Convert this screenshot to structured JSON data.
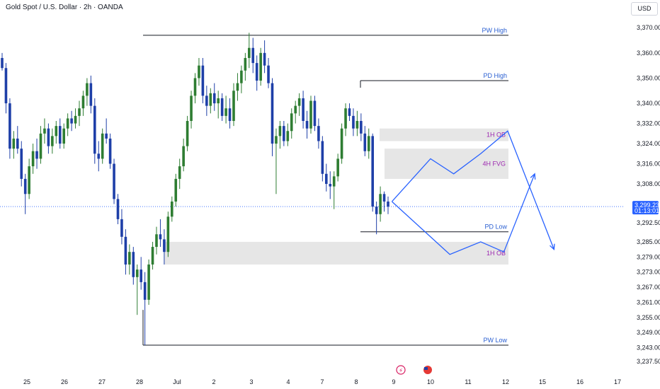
{
  "header": {
    "title": "Gold Spot / U.S. Dollar · 2h · OANDA",
    "currency": "USD"
  },
  "colors": {
    "up": "#2e7d32",
    "down": "#1e3fa8",
    "level_line": "#131722",
    "level_text": "#2a5fd1",
    "zone_text": "#9c27b0",
    "zone_fill": "#e6e6e6",
    "projection": "#2962ff",
    "price_tag": "#2962ff"
  },
  "chart_data": {
    "type": "candlestick",
    "title": "Gold Spot / U.S. Dollar · 2h · OANDA",
    "ylim": [
      3235,
      3374
    ],
    "y_ticks": [
      "3,370.000",
      "3,360.000",
      "3,350.000",
      "3,340.000",
      "3,332.000",
      "3,324.000",
      "3,316.000",
      "3,308.000",
      "3,292.500",
      "3,285.000",
      "3,279.000",
      "3,273.000",
      "3,267.000",
      "3,261.000",
      "3,255.000",
      "3,249.000",
      "3,243.000",
      "3,237.500"
    ],
    "x_ticks": [
      "25",
      "26",
      "27",
      "28",
      "Jul",
      "2",
      "3",
      "4",
      "7",
      "8",
      "9",
      "10",
      "11",
      "12",
      "15",
      "16",
      "17"
    ],
    "current_price": "3,299.235",
    "countdown": "01:13:01",
    "levels": [
      {
        "label": "PW High",
        "value": 3367
      },
      {
        "label": "PD High",
        "value": 3349
      },
      {
        "label": "PD Low",
        "value": 3289
      },
      {
        "label": "PW Low",
        "value": 3244
      }
    ],
    "zones": [
      {
        "label": "1H OB",
        "top": 3330,
        "bottom": 3325
      },
      {
        "label": "4H FVG",
        "top": 3322,
        "bottom": 3310
      },
      {
        "label": "1H OB",
        "top": 3285,
        "bottom": 3276
      }
    ],
    "candles": [
      {
        "o": 3358,
        "h": 3360,
        "l": 3353,
        "c": 3354
      },
      {
        "o": 3354,
        "h": 3356,
        "l": 3336,
        "c": 3340
      },
      {
        "o": 3340,
        "h": 3342,
        "l": 3318,
        "c": 3322
      },
      {
        "o": 3322,
        "h": 3329,
        "l": 3318,
        "c": 3326
      },
      {
        "o": 3326,
        "h": 3331,
        "l": 3320,
        "c": 3322
      },
      {
        "o": 3322,
        "h": 3325,
        "l": 3307,
        "c": 3310
      },
      {
        "o": 3310,
        "h": 3312,
        "l": 3296,
        "c": 3304
      },
      {
        "o": 3304,
        "h": 3318,
        "l": 3302,
        "c": 3315
      },
      {
        "o": 3315,
        "h": 3324,
        "l": 3312,
        "c": 3321
      },
      {
        "o": 3321,
        "h": 3326,
        "l": 3314,
        "c": 3318
      },
      {
        "o": 3318,
        "h": 3331,
        "l": 3316,
        "c": 3328
      },
      {
        "o": 3328,
        "h": 3334,
        "l": 3324,
        "c": 3330
      },
      {
        "o": 3330,
        "h": 3332,
        "l": 3320,
        "c": 3323
      },
      {
        "o": 3323,
        "h": 3330,
        "l": 3320,
        "c": 3327
      },
      {
        "o": 3327,
        "h": 3333,
        "l": 3324,
        "c": 3331
      },
      {
        "o": 3331,
        "h": 3334,
        "l": 3322,
        "c": 3324
      },
      {
        "o": 3324,
        "h": 3332,
        "l": 3322,
        "c": 3330
      },
      {
        "o": 3330,
        "h": 3336,
        "l": 3327,
        "c": 3334
      },
      {
        "o": 3334,
        "h": 3337,
        "l": 3329,
        "c": 3332
      },
      {
        "o": 3332,
        "h": 3338,
        "l": 3330,
        "c": 3335
      },
      {
        "o": 3335,
        "h": 3341,
        "l": 3331,
        "c": 3338
      },
      {
        "o": 3338,
        "h": 3345,
        "l": 3335,
        "c": 3343
      },
      {
        "o": 3343,
        "h": 3350,
        "l": 3339,
        "c": 3348
      },
      {
        "o": 3348,
        "h": 3351,
        "l": 3336,
        "c": 3339
      },
      {
        "o": 3339,
        "h": 3342,
        "l": 3316,
        "c": 3320
      },
      {
        "o": 3320,
        "h": 3325,
        "l": 3313,
        "c": 3318
      },
      {
        "o": 3318,
        "h": 3330,
        "l": 3316,
        "c": 3328
      },
      {
        "o": 3328,
        "h": 3334,
        "l": 3324,
        "c": 3326
      },
      {
        "o": 3326,
        "h": 3328,
        "l": 3314,
        "c": 3316
      },
      {
        "o": 3316,
        "h": 3318,
        "l": 3300,
        "c": 3302
      },
      {
        "o": 3302,
        "h": 3304,
        "l": 3292,
        "c": 3294
      },
      {
        "o": 3294,
        "h": 3298,
        "l": 3284,
        "c": 3287
      },
      {
        "o": 3287,
        "h": 3290,
        "l": 3272,
        "c": 3276
      },
      {
        "o": 3276,
        "h": 3284,
        "l": 3272,
        "c": 3281
      },
      {
        "o": 3281,
        "h": 3283,
        "l": 3268,
        "c": 3271
      },
      {
        "o": 3271,
        "h": 3276,
        "l": 3256,
        "c": 3274
      },
      {
        "o": 3274,
        "h": 3279,
        "l": 3266,
        "c": 3269
      },
      {
        "o": 3269,
        "h": 3273,
        "l": 3244,
        "c": 3262
      },
      {
        "o": 3262,
        "h": 3278,
        "l": 3260,
        "c": 3276
      },
      {
        "o": 3276,
        "h": 3285,
        "l": 3274,
        "c": 3283
      },
      {
        "o": 3283,
        "h": 3291,
        "l": 3280,
        "c": 3288
      },
      {
        "o": 3288,
        "h": 3294,
        "l": 3283,
        "c": 3286
      },
      {
        "o": 3286,
        "h": 3290,
        "l": 3276,
        "c": 3281
      },
      {
        "o": 3281,
        "h": 3297,
        "l": 3279,
        "c": 3295
      },
      {
        "o": 3295,
        "h": 3303,
        "l": 3293,
        "c": 3301
      },
      {
        "o": 3301,
        "h": 3312,
        "l": 3299,
        "c": 3310
      },
      {
        "o": 3310,
        "h": 3318,
        "l": 3306,
        "c": 3315
      },
      {
        "o": 3315,
        "h": 3326,
        "l": 3313,
        "c": 3323
      },
      {
        "o": 3323,
        "h": 3335,
        "l": 3321,
        "c": 3333
      },
      {
        "o": 3333,
        "h": 3345,
        "l": 3330,
        "c": 3343
      },
      {
        "o": 3343,
        "h": 3352,
        "l": 3340,
        "c": 3350
      },
      {
        "o": 3350,
        "h": 3358,
        "l": 3347,
        "c": 3355
      },
      {
        "o": 3355,
        "h": 3358,
        "l": 3340,
        "c": 3343
      },
      {
        "o": 3343,
        "h": 3347,
        "l": 3335,
        "c": 3339
      },
      {
        "o": 3339,
        "h": 3346,
        "l": 3336,
        "c": 3344
      },
      {
        "o": 3344,
        "h": 3348,
        "l": 3337,
        "c": 3340
      },
      {
        "o": 3340,
        "h": 3345,
        "l": 3334,
        "c": 3342
      },
      {
        "o": 3342,
        "h": 3344,
        "l": 3333,
        "c": 3335
      },
      {
        "o": 3335,
        "h": 3343,
        "l": 3332,
        "c": 3338
      },
      {
        "o": 3338,
        "h": 3342,
        "l": 3330,
        "c": 3333
      },
      {
        "o": 3333,
        "h": 3348,
        "l": 3331,
        "c": 3345
      },
      {
        "o": 3345,
        "h": 3352,
        "l": 3341,
        "c": 3348
      },
      {
        "o": 3348,
        "h": 3355,
        "l": 3344,
        "c": 3353
      },
      {
        "o": 3353,
        "h": 3360,
        "l": 3349,
        "c": 3358
      },
      {
        "o": 3358,
        "h": 3368,
        "l": 3354,
        "c": 3362
      },
      {
        "o": 3362,
        "h": 3366,
        "l": 3352,
        "c": 3356
      },
      {
        "o": 3356,
        "h": 3359,
        "l": 3345,
        "c": 3349
      },
      {
        "o": 3349,
        "h": 3362,
        "l": 3347,
        "c": 3360
      },
      {
        "o": 3360,
        "h": 3365,
        "l": 3352,
        "c": 3355
      },
      {
        "o": 3355,
        "h": 3358,
        "l": 3346,
        "c": 3348
      },
      {
        "o": 3348,
        "h": 3350,
        "l": 3319,
        "c": 3324
      },
      {
        "o": 3324,
        "h": 3330,
        "l": 3304,
        "c": 3327
      },
      {
        "o": 3327,
        "h": 3333,
        "l": 3322,
        "c": 3331
      },
      {
        "o": 3331,
        "h": 3333,
        "l": 3323,
        "c": 3325
      },
      {
        "o": 3325,
        "h": 3332,
        "l": 3323,
        "c": 3329
      },
      {
        "o": 3329,
        "h": 3338,
        "l": 3326,
        "c": 3336
      },
      {
        "o": 3336,
        "h": 3341,
        "l": 3332,
        "c": 3339
      },
      {
        "o": 3339,
        "h": 3344,
        "l": 3335,
        "c": 3342
      },
      {
        "o": 3342,
        "h": 3345,
        "l": 3330,
        "c": 3333
      },
      {
        "o": 3333,
        "h": 3337,
        "l": 3326,
        "c": 3330
      },
      {
        "o": 3330,
        "h": 3343,
        "l": 3328,
        "c": 3341
      },
      {
        "o": 3341,
        "h": 3343,
        "l": 3329,
        "c": 3331
      },
      {
        "o": 3331,
        "h": 3334,
        "l": 3322,
        "c": 3325
      },
      {
        "o": 3325,
        "h": 3327,
        "l": 3309,
        "c": 3312
      },
      {
        "o": 3312,
        "h": 3316,
        "l": 3305,
        "c": 3308
      },
      {
        "o": 3308,
        "h": 3313,
        "l": 3302,
        "c": 3307
      },
      {
        "o": 3307,
        "h": 3313,
        "l": 3298,
        "c": 3311
      },
      {
        "o": 3311,
        "h": 3320,
        "l": 3309,
        "c": 3318
      },
      {
        "o": 3318,
        "h": 3332,
        "l": 3316,
        "c": 3330
      },
      {
        "o": 3330,
        "h": 3340,
        "l": 3327,
        "c": 3338
      },
      {
        "o": 3338,
        "h": 3340,
        "l": 3333,
        "c": 3335
      },
      {
        "o": 3335,
        "h": 3338,
        "l": 3327,
        "c": 3330
      },
      {
        "o": 3330,
        "h": 3337,
        "l": 3327,
        "c": 3333
      },
      {
        "o": 3333,
        "h": 3336,
        "l": 3325,
        "c": 3328
      },
      {
        "o": 3328,
        "h": 3331,
        "l": 3319,
        "c": 3321
      },
      {
        "o": 3321,
        "h": 3330,
        "l": 3318,
        "c": 3327
      },
      {
        "o": 3327,
        "h": 3328,
        "l": 3297,
        "c": 3299
      },
      {
        "o": 3299,
        "h": 3301,
        "l": 3288,
        "c": 3296
      },
      {
        "o": 3296,
        "h": 3307,
        "l": 3293,
        "c": 3304
      },
      {
        "o": 3304,
        "h": 3305,
        "l": 3297,
        "c": 3301
      },
      {
        "o": 3301,
        "h": 3303,
        "l": 3296,
        "c": 3299
      }
    ],
    "projection_paths": [
      [
        {
          "i": 101,
          "v": 3301
        },
        {
          "i": 111,
          "v": 3318
        },
        {
          "i": 117,
          "v": 3312
        },
        {
          "i": 124,
          "v": 3320
        },
        {
          "i": 131,
          "v": 3329
        },
        {
          "i": 143,
          "v": 3282
        }
      ],
      [
        {
          "i": 101,
          "v": 3301
        },
        {
          "i": 116,
          "v": 3280
        },
        {
          "i": 124,
          "v": 3285
        },
        {
          "i": 130,
          "v": 3281
        },
        {
          "i": 138,
          "v": 3312
        }
      ]
    ]
  }
}
